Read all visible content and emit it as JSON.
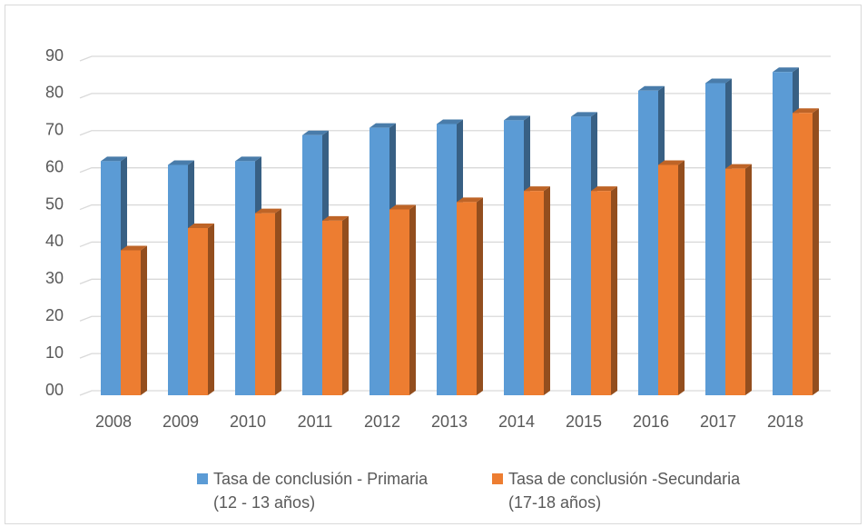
{
  "chart_data": {
    "type": "bar",
    "categories": [
      "2008",
      "2009",
      "2010",
      "2011",
      "2012",
      "2013",
      "2014",
      "2015",
      "2016",
      "2017",
      "2018"
    ],
    "series": [
      {
        "name": "Tasa de conclusión - Primaria\n(12 - 13 años)",
        "color": "#5b9bd5",
        "values": [
          63,
          62,
          63,
          70,
          72,
          73,
          74,
          75,
          82,
          84,
          87
        ]
      },
      {
        "name": "Tasa de conclusión -Secundaria\n(17-18 años)",
        "color": "#ed7d31",
        "values": [
          39,
          45,
          49,
          47,
          50,
          52,
          55,
          55,
          62,
          61,
          76
        ]
      }
    ],
    "ylim": [
      0,
      90
    ],
    "yticks": [
      {
        "value": 0,
        "label": "00"
      },
      10,
      20,
      30,
      40,
      50,
      60,
      70,
      80,
      90
    ],
    "grid": true,
    "legend": "bottom"
  }
}
